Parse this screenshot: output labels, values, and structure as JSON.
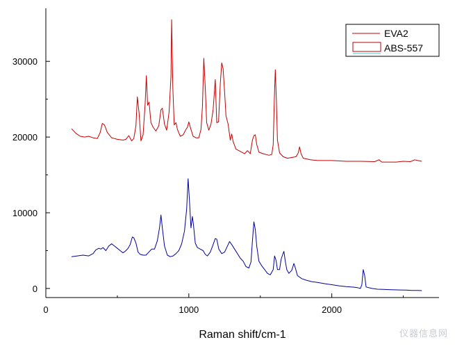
{
  "chart_data": {
    "type": "line",
    "xlabel": "Raman shift/cm-1",
    "ylabel": "",
    "xlim": [
      0,
      2750
    ],
    "ylim": [
      -1200,
      37000
    ],
    "x_ticks": [
      "0",
      "1000",
      "2000"
    ],
    "x_tick_values": [
      0,
      1000,
      2000
    ],
    "y_ticks": [
      "0",
      "10000",
      "20000",
      "30000"
    ],
    "y_tick_values": [
      0,
      10000,
      20000,
      30000
    ],
    "grid": false,
    "legend_position": "top-right",
    "series": [
      {
        "name": "EVA2",
        "color": "#c00000",
        "points": [
          [
            180,
            21100
          ],
          [
            210,
            20500
          ],
          [
            240,
            20100
          ],
          [
            270,
            20000
          ],
          [
            300,
            20100
          ],
          [
            330,
            19900
          ],
          [
            360,
            19800
          ],
          [
            380,
            20600
          ],
          [
            395,
            21800
          ],
          [
            410,
            21600
          ],
          [
            430,
            20600
          ],
          [
            460,
            19900
          ],
          [
            500,
            19700
          ],
          [
            540,
            19600
          ],
          [
            560,
            19700
          ],
          [
            580,
            20200
          ],
          [
            600,
            19500
          ],
          [
            615,
            19800
          ],
          [
            630,
            21500
          ],
          [
            640,
            25300
          ],
          [
            652,
            23200
          ],
          [
            665,
            19500
          ],
          [
            680,
            20300
          ],
          [
            695,
            24500
          ],
          [
            703,
            28100
          ],
          [
            712,
            24200
          ],
          [
            722,
            24600
          ],
          [
            735,
            21900
          ],
          [
            750,
            21300
          ],
          [
            770,
            20800
          ],
          [
            790,
            21500
          ],
          [
            805,
            23600
          ],
          [
            815,
            23800
          ],
          [
            830,
            21700
          ],
          [
            845,
            20900
          ],
          [
            862,
            23300
          ],
          [
            875,
            28000
          ],
          [
            880,
            35500
          ],
          [
            888,
            26500
          ],
          [
            898,
            21600
          ],
          [
            910,
            21900
          ],
          [
            920,
            21000
          ],
          [
            940,
            20100
          ],
          [
            960,
            20300
          ],
          [
            980,
            21000
          ],
          [
            990,
            21300
          ],
          [
            1000,
            22000
          ],
          [
            1015,
            21000
          ],
          [
            1030,
            20100
          ],
          [
            1050,
            19900
          ],
          [
            1070,
            19900
          ],
          [
            1085,
            21000
          ],
          [
            1095,
            24000
          ],
          [
            1105,
            30400
          ],
          [
            1115,
            26500
          ],
          [
            1125,
            21900
          ],
          [
            1140,
            20900
          ],
          [
            1155,
            21700
          ],
          [
            1170,
            23600
          ],
          [
            1185,
            27600
          ],
          [
            1195,
            21900
          ],
          [
            1208,
            22000
          ],
          [
            1220,
            27000
          ],
          [
            1230,
            29800
          ],
          [
            1240,
            29000
          ],
          [
            1250,
            26000
          ],
          [
            1260,
            22800
          ],
          [
            1275,
            21700
          ],
          [
            1290,
            19600
          ],
          [
            1300,
            20400
          ],
          [
            1310,
            19400
          ],
          [
            1330,
            18400
          ],
          [
            1350,
            18200
          ],
          [
            1370,
            18000
          ],
          [
            1390,
            17800
          ],
          [
            1410,
            18200
          ],
          [
            1430,
            17800
          ],
          [
            1445,
            19600
          ],
          [
            1455,
            20200
          ],
          [
            1465,
            20300
          ],
          [
            1475,
            19000
          ],
          [
            1490,
            18000
          ],
          [
            1520,
            17800
          ],
          [
            1540,
            17700
          ],
          [
            1560,
            17600
          ],
          [
            1580,
            17700
          ],
          [
            1590,
            19000
          ],
          [
            1598,
            25000
          ],
          [
            1605,
            28900
          ],
          [
            1612,
            25000
          ],
          [
            1620,
            19600
          ],
          [
            1635,
            17900
          ],
          [
            1660,
            17400
          ],
          [
            1690,
            17200
          ],
          [
            1720,
            17300
          ],
          [
            1750,
            17400
          ],
          [
            1765,
            17900
          ],
          [
            1775,
            18700
          ],
          [
            1785,
            17800
          ],
          [
            1800,
            17200
          ],
          [
            1850,
            17000
          ],
          [
            1900,
            16900
          ],
          [
            2000,
            16900
          ],
          [
            2100,
            16800
          ],
          [
            2200,
            16800
          ],
          [
            2300,
            16750
          ],
          [
            2330,
            17000
          ],
          [
            2350,
            16700
          ],
          [
            2400,
            16700
          ],
          [
            2450,
            16700
          ],
          [
            2500,
            16800
          ],
          [
            2550,
            16750
          ],
          [
            2580,
            17000
          ],
          [
            2600,
            16900
          ],
          [
            2630,
            16800
          ]
        ]
      },
      {
        "name": "ABS-557",
        "color": "#000099",
        "points": [
          [
            180,
            4200
          ],
          [
            220,
            4300
          ],
          [
            260,
            4400
          ],
          [
            300,
            4300
          ],
          [
            330,
            4600
          ],
          [
            350,
            5100
          ],
          [
            370,
            5300
          ],
          [
            385,
            5200
          ],
          [
            400,
            5400
          ],
          [
            420,
            5000
          ],
          [
            440,
            5600
          ],
          [
            460,
            5900
          ],
          [
            480,
            5600
          ],
          [
            500,
            5300
          ],
          [
            520,
            5000
          ],
          [
            540,
            4700
          ],
          [
            560,
            5000
          ],
          [
            575,
            5300
          ],
          [
            590,
            5800
          ],
          [
            605,
            6800
          ],
          [
            615,
            6700
          ],
          [
            630,
            6000
          ],
          [
            645,
            4800
          ],
          [
            660,
            4500
          ],
          [
            680,
            4400
          ],
          [
            700,
            4400
          ],
          [
            720,
            4800
          ],
          [
            740,
            5200
          ],
          [
            760,
            5200
          ],
          [
            780,
            6300
          ],
          [
            795,
            8000
          ],
          [
            805,
            9700
          ],
          [
            815,
            8000
          ],
          [
            830,
            5600
          ],
          [
            850,
            4400
          ],
          [
            870,
            4200
          ],
          [
            890,
            4300
          ],
          [
            910,
            4600
          ],
          [
            930,
            5000
          ],
          [
            950,
            5900
          ],
          [
            970,
            7600
          ],
          [
            985,
            10500
          ],
          [
            995,
            14500
          ],
          [
            1005,
            11500
          ],
          [
            1015,
            8000
          ],
          [
            1025,
            9500
          ],
          [
            1032,
            8500
          ],
          [
            1045,
            6000
          ],
          [
            1060,
            5400
          ],
          [
            1080,
            5200
          ],
          [
            1100,
            5000
          ],
          [
            1115,
            4500
          ],
          [
            1130,
            4300
          ],
          [
            1150,
            4800
          ],
          [
            1170,
            5800
          ],
          [
            1185,
            6600
          ],
          [
            1195,
            6500
          ],
          [
            1210,
            5200
          ],
          [
            1230,
            4600
          ],
          [
            1250,
            4800
          ],
          [
            1270,
            5600
          ],
          [
            1285,
            6200
          ],
          [
            1300,
            5800
          ],
          [
            1320,
            5200
          ],
          [
            1340,
            4600
          ],
          [
            1360,
            4000
          ],
          [
            1380,
            3600
          ],
          [
            1400,
            2900
          ],
          [
            1420,
            2700
          ],
          [
            1435,
            3500
          ],
          [
            1445,
            6300
          ],
          [
            1455,
            8800
          ],
          [
            1465,
            7800
          ],
          [
            1475,
            5600
          ],
          [
            1490,
            3600
          ],
          [
            1510,
            3000
          ],
          [
            1530,
            2500
          ],
          [
            1550,
            2000
          ],
          [
            1570,
            1800
          ],
          [
            1590,
            2500
          ],
          [
            1600,
            4300
          ],
          [
            1610,
            3700
          ],
          [
            1620,
            2500
          ],
          [
            1635,
            2500
          ],
          [
            1645,
            3800
          ],
          [
            1655,
            4400
          ],
          [
            1665,
            4900
          ],
          [
            1675,
            3600
          ],
          [
            1685,
            2500
          ],
          [
            1700,
            2000
          ],
          [
            1720,
            2400
          ],
          [
            1735,
            3300
          ],
          [
            1745,
            2700
          ],
          [
            1760,
            1700
          ],
          [
            1790,
            1300
          ],
          [
            1820,
            1100
          ],
          [
            1860,
            900
          ],
          [
            1900,
            800
          ],
          [
            1960,
            600
          ],
          [
            2000,
            500
          ],
          [
            2050,
            350
          ],
          [
            2100,
            250
          ],
          [
            2150,
            180
          ],
          [
            2180,
            100
          ],
          [
            2200,
            0
          ],
          [
            2210,
            500
          ],
          [
            2220,
            2500
          ],
          [
            2230,
            1700
          ],
          [
            2240,
            200
          ],
          [
            2280,
            0
          ],
          [
            2320,
            -100
          ],
          [
            2360,
            -120
          ],
          [
            2400,
            -150
          ],
          [
            2440,
            -180
          ],
          [
            2480,
            -200
          ],
          [
            2520,
            -220
          ],
          [
            2560,
            -250
          ],
          [
            2600,
            -260
          ],
          [
            2630,
            -280
          ]
        ]
      }
    ]
  },
  "watermark_text": "仪器信息网"
}
